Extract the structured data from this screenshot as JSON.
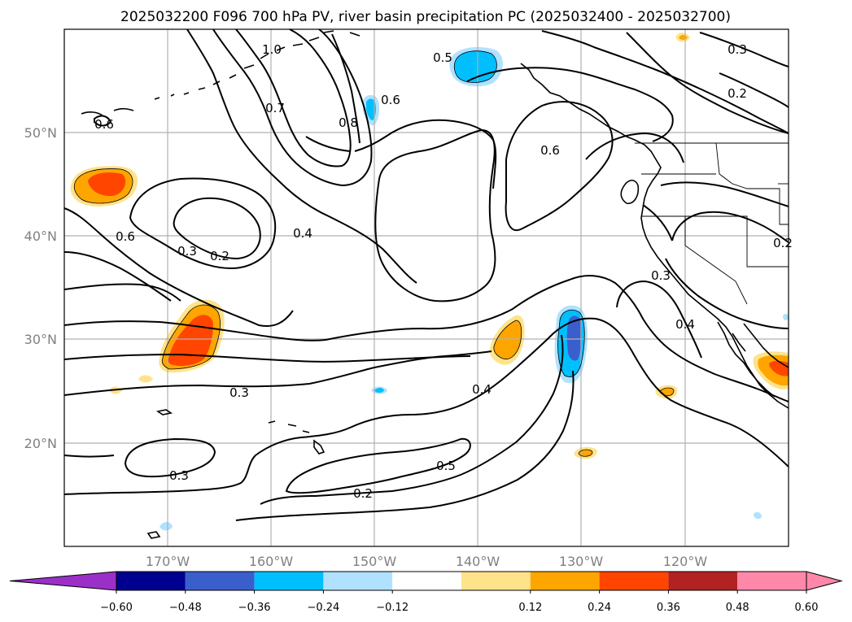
{
  "title": "2025032200 F096 700 hPa PV, river basin precipitation PC (2025032400 - 2025032700)",
  "map": {
    "lon_range": [
      -180,
      -110
    ],
    "lat_range": [
      10,
      60
    ],
    "lat_labels": [
      "20°N",
      "30°N",
      "40°N",
      "50°N"
    ],
    "lon_labels": [
      "170°W",
      "160°W",
      "150°W",
      "140°W",
      "130°W",
      "120°W"
    ]
  },
  "contour_labels": {
    "l1": "1.0",
    "l2": "0.7",
    "l3": "0.8",
    "l4": "0.6",
    "l5": "0.5",
    "l6": "0.3",
    "l7": "0.2",
    "l8": "0.6",
    "l9": "0.6",
    "l10": "0.3",
    "l11": "0.2",
    "l12": "0.4",
    "l13": "0.6",
    "l14": "0.3",
    "l15": "0.4",
    "l16": "0.4",
    "l17": "0.3",
    "l18": "0.5",
    "l19": "0.3",
    "l20": "0.2",
    "l21": "0.2"
  },
  "colorbar": {
    "ticks": [
      "−0.60",
      "−0.48",
      "−0.36",
      "−0.24",
      "−0.12",
      "0.12",
      "0.24",
      "0.36",
      "0.48",
      "0.60"
    ],
    "colors": {
      "below": "#9b30c8",
      "bins": [
        "#000090",
        "#3a5fcd",
        "#00bfff",
        "#b0e2ff",
        "#ffffff",
        "#ffe38a",
        "#ffa500",
        "#ff4500",
        "#b22222",
        "#ff88aa"
      ],
      "above": "#ff88aa"
    }
  },
  "fill_colors": {
    "orange": "#ffa500",
    "red_orange": "#ff4500",
    "light_yellow": "#ffe38a",
    "deep_sky": "#00bfff",
    "light_blue": "#b0e2ff",
    "royal_blue": "#3a5fcd"
  }
}
